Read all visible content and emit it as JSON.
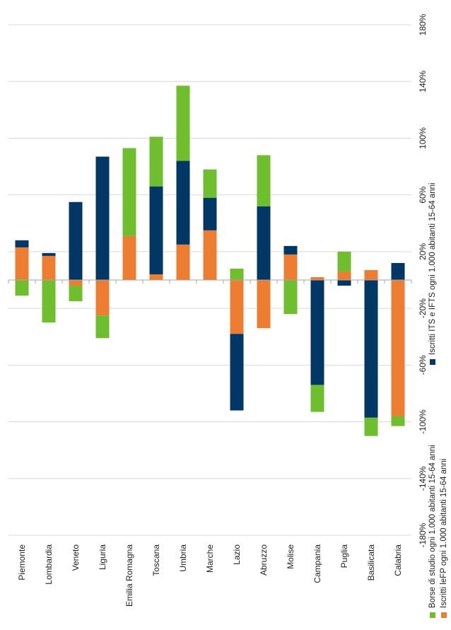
{
  "chart_data": {
    "type": "bar",
    "stacked": true,
    "orientation": "rotated",
    "categories": [
      "Piemonte",
      "Lombardia",
      "Veneto",
      "Liguria",
      "Emilia Romagna",
      "Toscana",
      "Umbria",
      "Marche",
      "Lazio",
      "Abruzzo",
      "Molise",
      "Campania",
      "Puglia",
      "Basilicata",
      "Calabria"
    ],
    "series": [
      {
        "name": "Iscritti leFP ogni 1.000 abitanti 15-64 anni",
        "color": "#ED7D31",
        "values": [
          23,
          17,
          -4,
          -25,
          31,
          4,
          25,
          35,
          -38,
          -34,
          18,
          2,
          6,
          7,
          -96
        ]
      },
      {
        "name": "Iscritti ITS e IFTS ogni 1.000 abitanti 15-64 anni",
        "color": "#003764",
        "values": [
          5,
          2,
          55,
          87,
          0,
          62,
          59,
          23,
          -54,
          52,
          6,
          -74,
          -4,
          -97,
          12
        ]
      },
      {
        "name": "Borse di studio ogni 1.000 abitanti 15-64 anni",
        "color": "#6FBE2D",
        "values": [
          -11,
          -30,
          -11,
          -16,
          62,
          35,
          53,
          20,
          8,
          36,
          -24,
          -19,
          14,
          -13,
          -7
        ]
      }
    ],
    "ylim": [
      -180,
      180
    ],
    "y_ticks": [
      "-180%",
      "-140%",
      "-100%",
      "-60%",
      "-20%",
      "20%",
      "60%",
      "100%",
      "140%",
      "180%"
    ],
    "grid": true,
    "legend_position": "bottom"
  }
}
